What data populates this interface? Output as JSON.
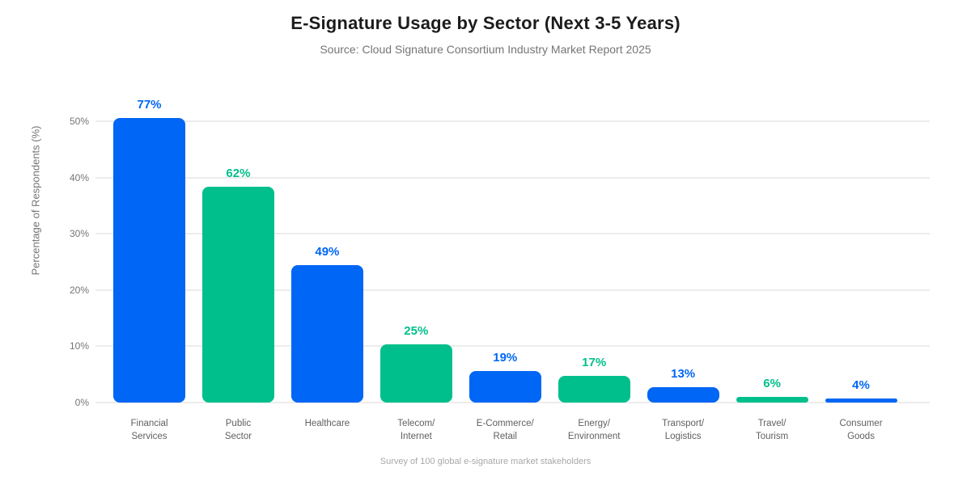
{
  "header": {
    "title": "E-Signature Usage by Sector (Next 3-5 Years)",
    "subtitle": "Source: Cloud Signature Consortium Industry Market Report 2025"
  },
  "footer": {
    "note": "Survey of 100 global e-signature market stakeholders"
  },
  "colors": {
    "bar_blue": "#0066F5",
    "bar_green": "#00BF8C",
    "gridline": "#ececec",
    "title_text": "#1c1c1c",
    "subtitle_text": "#757575",
    "axis_tick_text": "#757575",
    "category_text": "#606060",
    "footer_text": "#a8a8a8",
    "background": "#ffffff"
  },
  "chart_data": {
    "type": "bar",
    "title": "E-Signature Usage by Sector (Next 3-5 Years)",
    "subtitle": "Source: Cloud Signature Consortium Industry Market Report 2025",
    "xlabel": "",
    "ylabel": "Percentage of Respondents (%)",
    "ylim": [
      0,
      50
    ],
    "y_ticks": [
      "0%",
      "10%",
      "20%",
      "30%",
      "40%",
      "50%"
    ],
    "y_tick_values": [
      0,
      10,
      20,
      30,
      40,
      50
    ],
    "grid": true,
    "legend": "none",
    "categories": [
      "Financial Services",
      "Public Sector",
      "Healthcare",
      "Telecom/Internet",
      "E-Commerce/Retail",
      "Energy/Environment",
      "Transport/Logistics",
      "Travel/Tourism",
      "Consumer Goods"
    ],
    "category_lines": [
      [
        "Financial",
        "Services"
      ],
      [
        "Public",
        "Sector"
      ],
      [
        "Healthcare"
      ],
      [
        "Telecom/",
        "Internet"
      ],
      [
        "E-Commerce/",
        "Retail"
      ],
      [
        "Energy/",
        "Environment"
      ],
      [
        "Transport/",
        "Logistics"
      ],
      [
        "Travel/",
        "Tourism"
      ],
      [
        "Consumer",
        "Goods"
      ]
    ],
    "values": [
      77,
      62,
      49,
      25,
      19,
      17,
      13,
      6,
      4
    ],
    "value_labels": [
      "77%",
      "62%",
      "49%",
      "25%",
      "19%",
      "17%",
      "13%",
      "6%",
      "4%"
    ],
    "rendered_bar_height_axis_pct": [
      50.6,
      38.4,
      24.4,
      10.3,
      5.6,
      4.7,
      2.7,
      1.0,
      0.7
    ],
    "bar_colors": [
      "#0066F5",
      "#00BF8C",
      "#0066F5",
      "#00BF8C",
      "#0066F5",
      "#00BF8C",
      "#0066F5",
      "#00BF8C",
      "#0066F5"
    ],
    "note": "Survey of 100 global e-signature market stakeholders"
  }
}
